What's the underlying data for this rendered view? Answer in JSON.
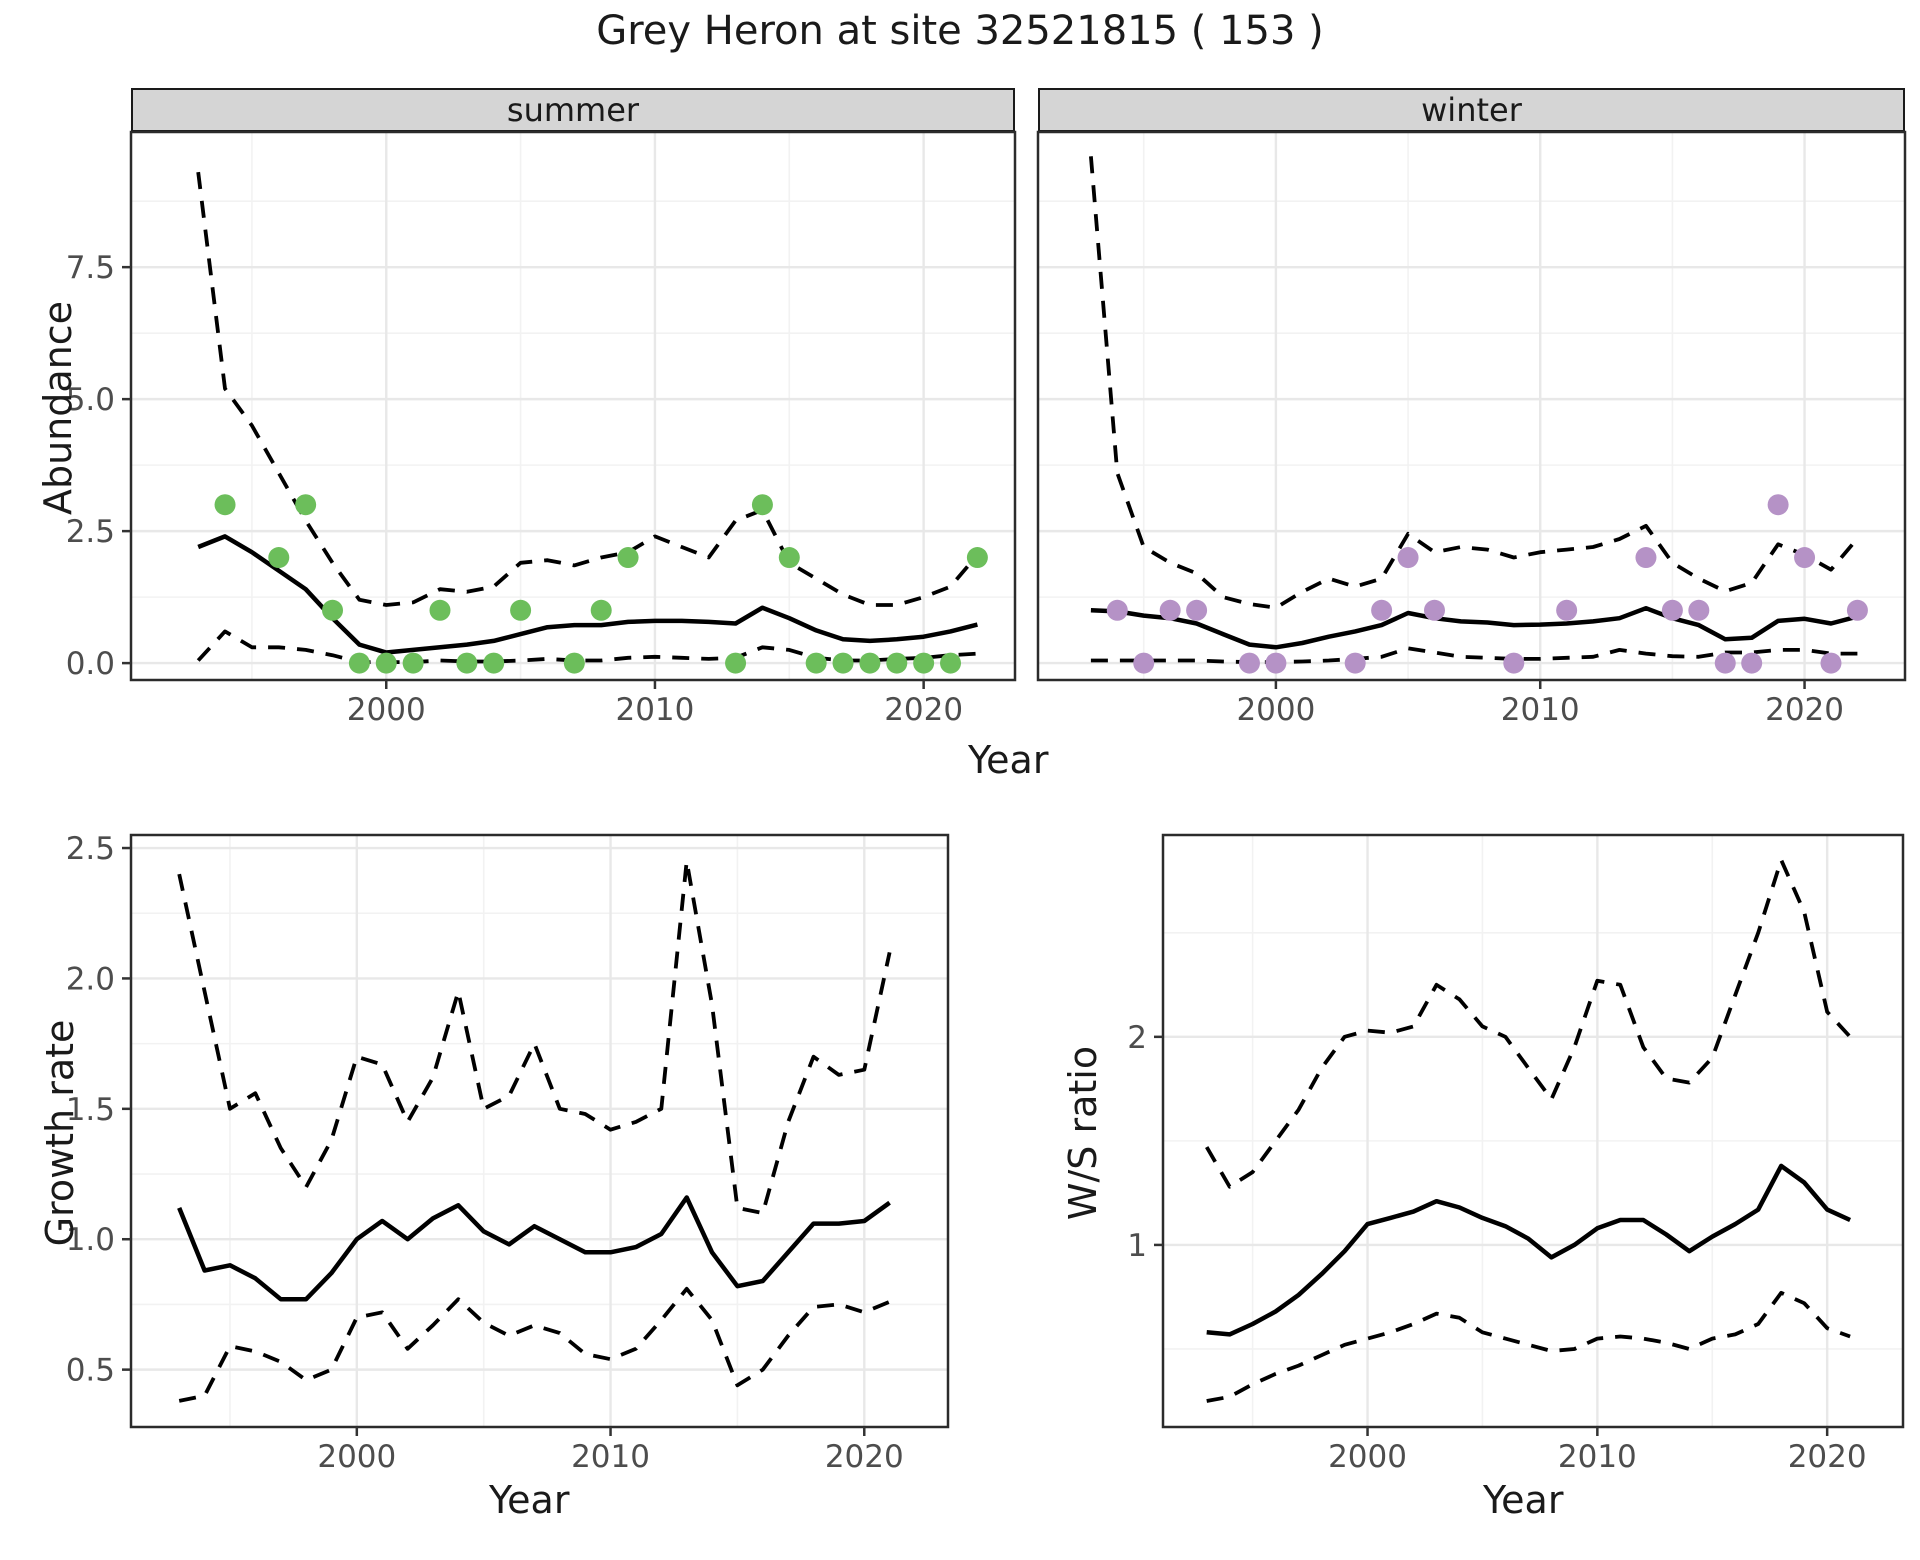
{
  "title": "Grey Heron at site 32521815 ( 153 )",
  "colors": {
    "summer_points": "#6cbe5b",
    "winter_points": "#b592c6",
    "line": "#000000",
    "grid_major": "#e8e8e8",
    "grid_minor": "#f2f2f2",
    "panel_border": "#2b2b2b",
    "strip_bg": "#d5d5d5",
    "tick_text": "#4d4d4d"
  },
  "facets": {
    "summer_label": "summer",
    "winter_label": "winter"
  },
  "axis_titles": {
    "abundance": "Abundance",
    "year_top": "Year",
    "growth_rate": "Growth rate",
    "year_growth": "Year",
    "ws_ratio": "W/S ratio",
    "year_ws": "Year"
  },
  "chart_data": [
    {
      "id": "summer",
      "type": "line",
      "facet_label": "summer",
      "xlabel": "Year",
      "ylabel": "Abundance",
      "xlim": [
        1990.5,
        2023.4
      ],
      "ylim": [
        -0.32,
        10.06
      ],
      "xticks": [
        {
          "v": 2000,
          "label": "2000"
        },
        {
          "v": 2010,
          "label": "2010"
        },
        {
          "v": 2020,
          "label": "2020"
        }
      ],
      "xminor": [
        1995,
        2005,
        2015
      ],
      "yticks": [
        {
          "v": 0,
          "label": "0.0"
        },
        {
          "v": 2.5,
          "label": "2.5"
        },
        {
          "v": 5,
          "label": "5.0"
        },
        {
          "v": 7.5,
          "label": "7.5"
        }
      ],
      "yminor": [
        1.25,
        3.75,
        6.25,
        8.75
      ],
      "show_ytick_labels": true,
      "grid": true,
      "series": [
        {
          "name": "upper-ci",
          "style": "dashed",
          "start_year": 1993,
          "values": [
            9.3,
            5.2,
            4.5,
            3.6,
            2.7,
            1.9,
            1.2,
            1.1,
            1.15,
            1.4,
            1.35,
            1.45,
            1.9,
            1.95,
            1.85,
            2.0,
            2.1,
            2.4,
            2.2,
            2.0,
            2.7,
            2.9,
            1.9,
            1.6,
            1.3,
            1.1,
            1.1,
            1.25,
            1.45,
            2.05
          ]
        },
        {
          "name": "lower-ci",
          "style": "dashed",
          "start_year": 1993,
          "values": [
            0.05,
            0.6,
            0.3,
            0.3,
            0.25,
            0.15,
            0.02,
            0.02,
            0.02,
            0.05,
            0.03,
            0.03,
            0.05,
            0.08,
            0.05,
            0.05,
            0.1,
            0.12,
            0.1,
            0.08,
            0.1,
            0.3,
            0.25,
            0.1,
            0.05,
            0.05,
            0.08,
            0.1,
            0.15,
            0.18
          ]
        },
        {
          "name": "estimate",
          "style": "solid",
          "start_year": 1993,
          "values": [
            2.2,
            2.4,
            2.1,
            1.75,
            1.4,
            0.85,
            0.35,
            0.2,
            0.25,
            0.3,
            0.35,
            0.42,
            0.55,
            0.68,
            0.72,
            0.72,
            0.78,
            0.8,
            0.8,
            0.78,
            0.75,
            1.05,
            0.85,
            0.62,
            0.45,
            0.42,
            0.45,
            0.5,
            0.6,
            0.73
          ]
        },
        {
          "name": "observations",
          "type": "scatter",
          "color": "#6cbe5b",
          "points": [
            [
              1994,
              3
            ],
            [
              1996,
              2
            ],
            [
              1997,
              3
            ],
            [
              1998,
              1
            ],
            [
              1999,
              0
            ],
            [
              2000,
              0
            ],
            [
              2001,
              0
            ],
            [
              2002,
              1
            ],
            [
              2003,
              0
            ],
            [
              2004,
              0
            ],
            [
              2005,
              1
            ],
            [
              2007,
              0
            ],
            [
              2008,
              1
            ],
            [
              2009,
              2
            ],
            [
              2013,
              0
            ],
            [
              2014,
              3
            ],
            [
              2015,
              2
            ],
            [
              2016,
              0
            ],
            [
              2017,
              0
            ],
            [
              2018,
              0
            ],
            [
              2019,
              0
            ],
            [
              2020,
              0
            ],
            [
              2021,
              0
            ],
            [
              2022,
              2
            ]
          ]
        }
      ]
    },
    {
      "id": "winter",
      "type": "line",
      "facet_label": "winter",
      "xlabel": "Year",
      "ylabel": "Abundance",
      "xlim": [
        1991.0,
        2023.8
      ],
      "ylim": [
        -0.32,
        10.06
      ],
      "xticks": [
        {
          "v": 2000,
          "label": "2000"
        },
        {
          "v": 2010,
          "label": "2010"
        },
        {
          "v": 2020,
          "label": "2020"
        }
      ],
      "xminor": [
        1995,
        2005,
        2015
      ],
      "yticks": [
        {
          "v": 0,
          "label": "0.0"
        },
        {
          "v": 2.5,
          "label": "2.5"
        },
        {
          "v": 5,
          "label": "5.0"
        },
        {
          "v": 7.5,
          "label": "7.5"
        }
      ],
      "yminor": [
        1.25,
        3.75,
        6.25,
        8.75
      ],
      "show_ytick_labels": false,
      "grid": true,
      "series": [
        {
          "name": "upper-ci",
          "style": "dashed",
          "start_year": 1993,
          "values": [
            9.6,
            3.6,
            2.2,
            1.9,
            1.7,
            1.25,
            1.12,
            1.05,
            1.35,
            1.6,
            1.45,
            1.6,
            2.45,
            2.1,
            2.2,
            2.15,
            2.0,
            2.1,
            2.15,
            2.2,
            2.35,
            2.6,
            1.9,
            1.6,
            1.36,
            1.52,
            2.25,
            2.05,
            1.77,
            2.36
          ]
        },
        {
          "name": "lower-ci",
          "style": "dashed",
          "start_year": 1993,
          "values": [
            0.05,
            0.05,
            0.05,
            0.05,
            0.05,
            0.03,
            0.02,
            0.02,
            0.03,
            0.05,
            0.08,
            0.12,
            0.28,
            0.2,
            0.12,
            0.1,
            0.08,
            0.08,
            0.1,
            0.12,
            0.25,
            0.18,
            0.13,
            0.12,
            0.2,
            0.2,
            0.25,
            0.25,
            0.18,
            0.18
          ]
        },
        {
          "name": "estimate",
          "style": "solid",
          "start_year": 1993,
          "values": [
            1.0,
            0.98,
            0.9,
            0.85,
            0.75,
            0.55,
            0.35,
            0.3,
            0.38,
            0.5,
            0.6,
            0.72,
            0.95,
            0.85,
            0.79,
            0.77,
            0.72,
            0.73,
            0.75,
            0.79,
            0.85,
            1.04,
            0.85,
            0.72,
            0.45,
            0.48,
            0.8,
            0.84,
            0.75,
            0.88
          ]
        },
        {
          "name": "observations",
          "type": "scatter",
          "color": "#b592c6",
          "points": [
            [
              1994,
              1
            ],
            [
              1995,
              0
            ],
            [
              1996,
              1
            ],
            [
              1997,
              1
            ],
            [
              1999,
              0
            ],
            [
              2000,
              0
            ],
            [
              2003,
              0
            ],
            [
              2004,
              1
            ],
            [
              2005,
              2
            ],
            [
              2006,
              1
            ],
            [
              2009,
              0
            ],
            [
              2011,
              1
            ],
            [
              2014,
              2
            ],
            [
              2015,
              1
            ],
            [
              2016,
              1
            ],
            [
              2017,
              0
            ],
            [
              2018,
              0
            ],
            [
              2019,
              3
            ],
            [
              2020,
              2
            ],
            [
              2021,
              0
            ],
            [
              2022,
              1
            ]
          ]
        }
      ]
    },
    {
      "id": "growth",
      "type": "line",
      "xlabel": "Year",
      "ylabel": "Growth rate",
      "xlim": [
        1991.1,
        2023.3
      ],
      "ylim": [
        0.28,
        2.55
      ],
      "xticks": [
        {
          "v": 2000,
          "label": "2000"
        },
        {
          "v": 2010,
          "label": "2010"
        },
        {
          "v": 2020,
          "label": "2020"
        }
      ],
      "xminor": [
        1995,
        2005,
        2015
      ],
      "yticks": [
        {
          "v": 0.5,
          "label": "0.5"
        },
        {
          "v": 1.0,
          "label": "1.0"
        },
        {
          "v": 1.5,
          "label": "1.5"
        },
        {
          "v": 2.0,
          "label": "2.0"
        },
        {
          "v": 2.5,
          "label": "2.5"
        }
      ],
      "yminor": [
        0.75,
        1.25,
        1.75,
        2.25
      ],
      "show_ytick_labels": true,
      "grid": true,
      "series": [
        {
          "name": "upper-ci",
          "style": "dashed",
          "start_year": 1993,
          "values": [
            2.4,
            1.95,
            1.5,
            1.56,
            1.35,
            1.2,
            1.38,
            1.7,
            1.67,
            1.45,
            1.62,
            1.95,
            1.5,
            1.55,
            1.75,
            1.5,
            1.48,
            1.42,
            1.45,
            1.5,
            2.45,
            1.9,
            1.12,
            1.1,
            1.45,
            1.7,
            1.63,
            1.65,
            2.1
          ]
        },
        {
          "name": "lower-ci",
          "style": "dashed",
          "start_year": 1993,
          "values": [
            0.38,
            0.4,
            0.59,
            0.57,
            0.53,
            0.46,
            0.5,
            0.7,
            0.72,
            0.58,
            0.67,
            0.77,
            0.68,
            0.63,
            0.67,
            0.64,
            0.56,
            0.54,
            0.58,
            0.69,
            0.81,
            0.69,
            0.44,
            0.5,
            0.63,
            0.74,
            0.75,
            0.72,
            0.76
          ]
        },
        {
          "name": "estimate",
          "style": "solid",
          "start_year": 1993,
          "values": [
            1.12,
            0.88,
            0.9,
            0.85,
            0.77,
            0.77,
            0.87,
            1.0,
            1.07,
            1.0,
            1.08,
            1.13,
            1.03,
            0.98,
            1.05,
            1.0,
            0.95,
            0.95,
            0.97,
            1.02,
            1.16,
            0.95,
            0.82,
            0.84,
            0.95,
            1.06,
            1.06,
            1.07,
            1.14
          ]
        }
      ]
    },
    {
      "id": "ws",
      "type": "line",
      "xlabel": "Year",
      "ylabel": "W/S ratio",
      "xlim": [
        1991.1,
        2023.3
      ],
      "ylim": [
        0.125,
        2.97
      ],
      "xticks": [
        {
          "v": 2000,
          "label": "2000"
        },
        {
          "v": 2010,
          "label": "2010"
        },
        {
          "v": 2020,
          "label": "2020"
        }
      ],
      "xminor": [
        1995,
        2005,
        2015
      ],
      "yticks": [
        {
          "v": 1,
          "label": "1"
        },
        {
          "v": 2,
          "label": "2"
        }
      ],
      "yminor": [
        0.5,
        1.5,
        2.5
      ],
      "show_ytick_labels": true,
      "grid": true,
      "series": [
        {
          "name": "upper-ci",
          "style": "dashed",
          "start_year": 1993,
          "values": [
            1.47,
            1.28,
            1.35,
            1.5,
            1.65,
            1.85,
            2.0,
            2.03,
            2.02,
            2.05,
            2.25,
            2.18,
            2.05,
            2.0,
            1.85,
            1.7,
            1.95,
            2.27,
            2.25,
            1.95,
            1.8,
            1.78,
            1.9,
            2.2,
            2.5,
            2.85,
            2.6,
            2.12,
            2.0
          ]
        },
        {
          "name": "lower-ci",
          "style": "dashed",
          "start_year": 1993,
          "values": [
            0.25,
            0.27,
            0.33,
            0.38,
            0.42,
            0.47,
            0.52,
            0.55,
            0.58,
            0.62,
            0.67,
            0.65,
            0.58,
            0.55,
            0.52,
            0.49,
            0.5,
            0.55,
            0.56,
            0.55,
            0.53,
            0.5,
            0.55,
            0.57,
            0.62,
            0.77,
            0.72,
            0.6,
            0.56
          ]
        },
        {
          "name": "estimate",
          "style": "solid",
          "start_year": 1993,
          "values": [
            0.58,
            0.57,
            0.62,
            0.68,
            0.76,
            0.86,
            0.97,
            1.1,
            1.13,
            1.16,
            1.21,
            1.18,
            1.13,
            1.09,
            1.03,
            0.94,
            1.0,
            1.08,
            1.12,
            1.12,
            1.05,
            0.97,
            1.04,
            1.1,
            1.17,
            1.38,
            1.3,
            1.17,
            1.12
          ]
        }
      ]
    }
  ]
}
